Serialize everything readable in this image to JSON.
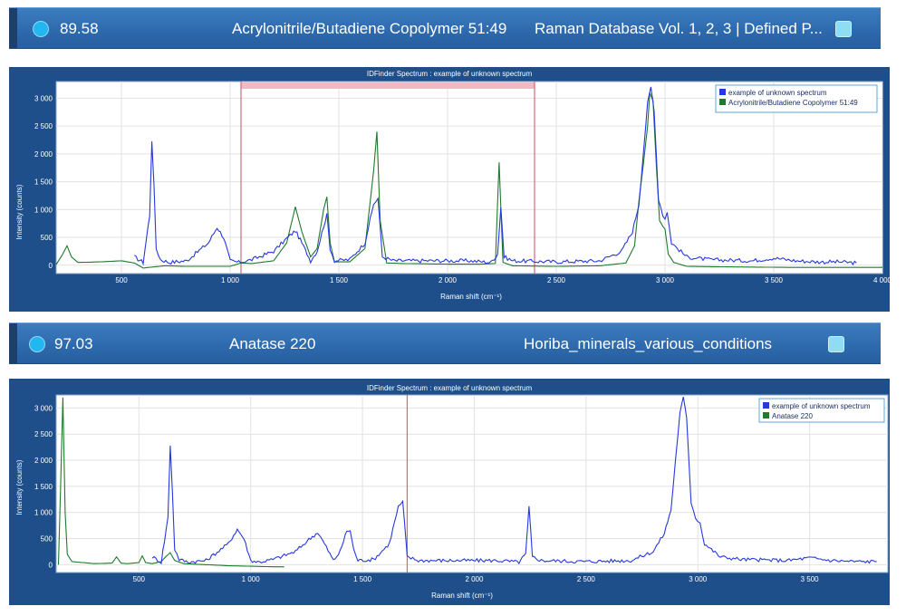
{
  "colors": {
    "bar_background": "#2e6aae",
    "panel_background": "#1e4f8a",
    "unknown_spectrum": "#2638e0",
    "reference_spectrum": "#1f7a2c",
    "marker_line": "#d06a78"
  },
  "results": [
    {
      "score": "89.58",
      "name": "Acrylonitrile/Butadiene Copolymer 51:49",
      "database": "Raman Database Vol. 1, 2, 3 | Defined P...",
      "selected_icon": "radio-selected-icon",
      "checkbox_icon": "checkbox-icon",
      "chart": {
        "title": "IDFinder Spectrum : example of unknown spectrum",
        "xlabel": "Raman shift (cm⁻¹)",
        "ylabel": "Intensity (counts)",
        "legend": [
          "example of unknown spectrum",
          "Acrylonitrile/Butadiene Copolymer 51:49"
        ]
      }
    },
    {
      "score": "97.03",
      "name": "Anatase 220",
      "database": "Horiba_minerals_various_conditions",
      "selected_icon": "radio-selected-icon",
      "checkbox_icon": "checkbox-icon",
      "chart": {
        "title": "IDFinder Spectrum : example of unknown spectrum",
        "xlabel": "Raman shift (cm⁻¹)",
        "ylabel": "Intensity (counts)",
        "legend": [
          "example of unknown spectrum",
          "Anatase 220"
        ]
      }
    }
  ],
  "chart_data": [
    {
      "type": "line",
      "title": "IDFinder Spectrum : example of unknown spectrum",
      "xlabel": "Raman shift (cm⁻¹)",
      "ylabel": "Intensity (counts)",
      "xlim": [
        200,
        4000
      ],
      "ylim": [
        -150,
        3300
      ],
      "x_ticks": [
        500,
        1000,
        1500,
        2000,
        2500,
        3000,
        3500,
        4000
      ],
      "x_tick_labels": [
        "500",
        "1 000",
        "1 500",
        "2 000",
        "2 500",
        "3 000",
        "3 500",
        "4 000"
      ],
      "y_ticks": [
        0,
        500,
        1000,
        1500,
        2000,
        2500,
        3000
      ],
      "y_tick_labels": [
        "0",
        "500",
        "1 000",
        "1 500",
        "2 000",
        "2 500",
        "3 000"
      ],
      "grid": true,
      "legend_position": "top-right",
      "markers": [
        1050,
        2400
      ],
      "highlight_range": [
        1050,
        2400
      ],
      "series": [
        {
          "name": "example of unknown spectrum",
          "color": "#2638e0",
          "x": [
            560,
            600,
            630,
            640,
            650,
            660,
            680,
            720,
            800,
            900,
            940,
            970,
            1000,
            1040,
            1100,
            1200,
            1260,
            1300,
            1330,
            1370,
            1400,
            1430,
            1445,
            1460,
            1480,
            1550,
            1620,
            1660,
            1680,
            1700,
            1750,
            1900,
            2100,
            2200,
            2230,
            2245,
            2260,
            2300,
            2500,
            2700,
            2800,
            2850,
            2880,
            2900,
            2920,
            2935,
            2950,
            2970,
            2990,
            3000,
            3010,
            3030,
            3100,
            3200,
            3400,
            3500,
            3600,
            3700,
            3800,
            3880
          ],
          "values": [
            150,
            50,
            900,
            2250,
            1400,
            300,
            100,
            50,
            80,
            400,
            680,
            500,
            80,
            50,
            100,
            250,
            480,
            620,
            400,
            80,
            250,
            700,
            900,
            300,
            80,
            100,
            400,
            1100,
            1200,
            150,
            80,
            80,
            80,
            50,
            200,
            1050,
            150,
            80,
            60,
            80,
            250,
            600,
            1100,
            2000,
            2900,
            3200,
            2800,
            1200,
            900,
            850,
            950,
            400,
            150,
            100,
            80,
            130,
            80,
            60,
            60,
            40
          ]
        },
        {
          "name": "Acrylonitrile/Butadiene Copolymer 51:49",
          "color": "#1f7a2c",
          "x": [
            200,
            230,
            250,
            270,
            300,
            400,
            500,
            560,
            600,
            700,
            800,
            900,
            1000,
            1050,
            1100,
            1200,
            1260,
            1300,
            1330,
            1370,
            1400,
            1430,
            1445,
            1460,
            1480,
            1550,
            1620,
            1660,
            1675,
            1690,
            1720,
            1800,
            2000,
            2150,
            2220,
            2237,
            2255,
            2300,
            2500,
            2700,
            2820,
            2860,
            2880,
            2900,
            2920,
            2930,
            2945,
            2960,
            2975,
            2990,
            3000,
            3015,
            3040,
            3100,
            3300,
            3600,
            3800,
            4000
          ],
          "values": [
            10,
            200,
            350,
            150,
            50,
            60,
            80,
            40,
            -50,
            -10,
            -20,
            -20,
            -20,
            40,
            30,
            80,
            400,
            1050,
            600,
            150,
            300,
            1000,
            1230,
            400,
            60,
            60,
            300,
            1700,
            2400,
            800,
            40,
            30,
            20,
            20,
            30,
            1850,
            50,
            -10,
            -20,
            -10,
            40,
            350,
            1150,
            1800,
            2500,
            3100,
            2950,
            1800,
            800,
            700,
            650,
            200,
            50,
            -20,
            -30,
            -40,
            -40,
            -40
          ]
        }
      ]
    },
    {
      "type": "line",
      "title": "IDFinder Spectrum : example of unknown spectrum",
      "xlabel": "Raman shift (cm⁻¹)",
      "ylabel": "Intensity (counts)",
      "xlim": [
        130,
        3850
      ],
      "ylim": [
        -150,
        3250
      ],
      "x_ticks": [
        500,
        1000,
        1500,
        2000,
        2500,
        3000,
        3500
      ],
      "x_tick_labels": [
        "500",
        "1 000",
        "1 500",
        "2 000",
        "2 500",
        "3 000",
        "3 500"
      ],
      "y_ticks": [
        0,
        500,
        1000,
        1500,
        2000,
        2500,
        3000
      ],
      "y_tick_labels": [
        "0",
        "500",
        "1 000",
        "1 500",
        "2 000",
        "2 500",
        "3 000"
      ],
      "grid": true,
      "legend_position": "top-right",
      "markers": [
        1700
      ],
      "series": [
        {
          "name": "example of unknown spectrum",
          "color": "#2638e0",
          "x": [
            560,
            600,
            630,
            640,
            650,
            660,
            680,
            720,
            800,
            900,
            940,
            970,
            1000,
            1040,
            1100,
            1200,
            1260,
            1300,
            1330,
            1370,
            1400,
            1430,
            1445,
            1460,
            1480,
            1550,
            1620,
            1660,
            1680,
            1700,
            1750,
            1900,
            2100,
            2200,
            2230,
            2245,
            2260,
            2300,
            2500,
            2700,
            2800,
            2850,
            2880,
            2900,
            2920,
            2935,
            2950,
            2970,
            2990,
            3000,
            3010,
            3030,
            3100,
            3200,
            3400,
            3500,
            3600,
            3700,
            3800
          ],
          "values": [
            150,
            50,
            900,
            2300,
            1400,
            300,
            100,
            50,
            80,
            400,
            680,
            500,
            80,
            50,
            100,
            250,
            480,
            620,
            400,
            80,
            250,
            650,
            650,
            300,
            80,
            100,
            400,
            1100,
            1200,
            150,
            80,
            80,
            80,
            50,
            200,
            1100,
            150,
            80,
            60,
            80,
            250,
            600,
            1050,
            2000,
            2900,
            3200,
            2800,
            1200,
            900,
            850,
            800,
            400,
            150,
            100,
            80,
            130,
            80,
            60,
            60
          ]
        },
        {
          "name": "Anatase 220",
          "color": "#1f7a2c",
          "x": [
            140,
            150,
            160,
            170,
            180,
            200,
            300,
            380,
            400,
            420,
            450,
            500,
            515,
            530,
            560,
            600,
            620,
            640,
            660,
            700,
            800,
            900,
            1000,
            1100,
            1150
          ],
          "values": [
            0,
            1500,
            3200,
            1000,
            200,
            60,
            20,
            30,
            150,
            30,
            20,
            40,
            170,
            40,
            20,
            60,
            150,
            230,
            80,
            20,
            0,
            -20,
            -30,
            -40,
            -40
          ]
        }
      ]
    }
  ]
}
